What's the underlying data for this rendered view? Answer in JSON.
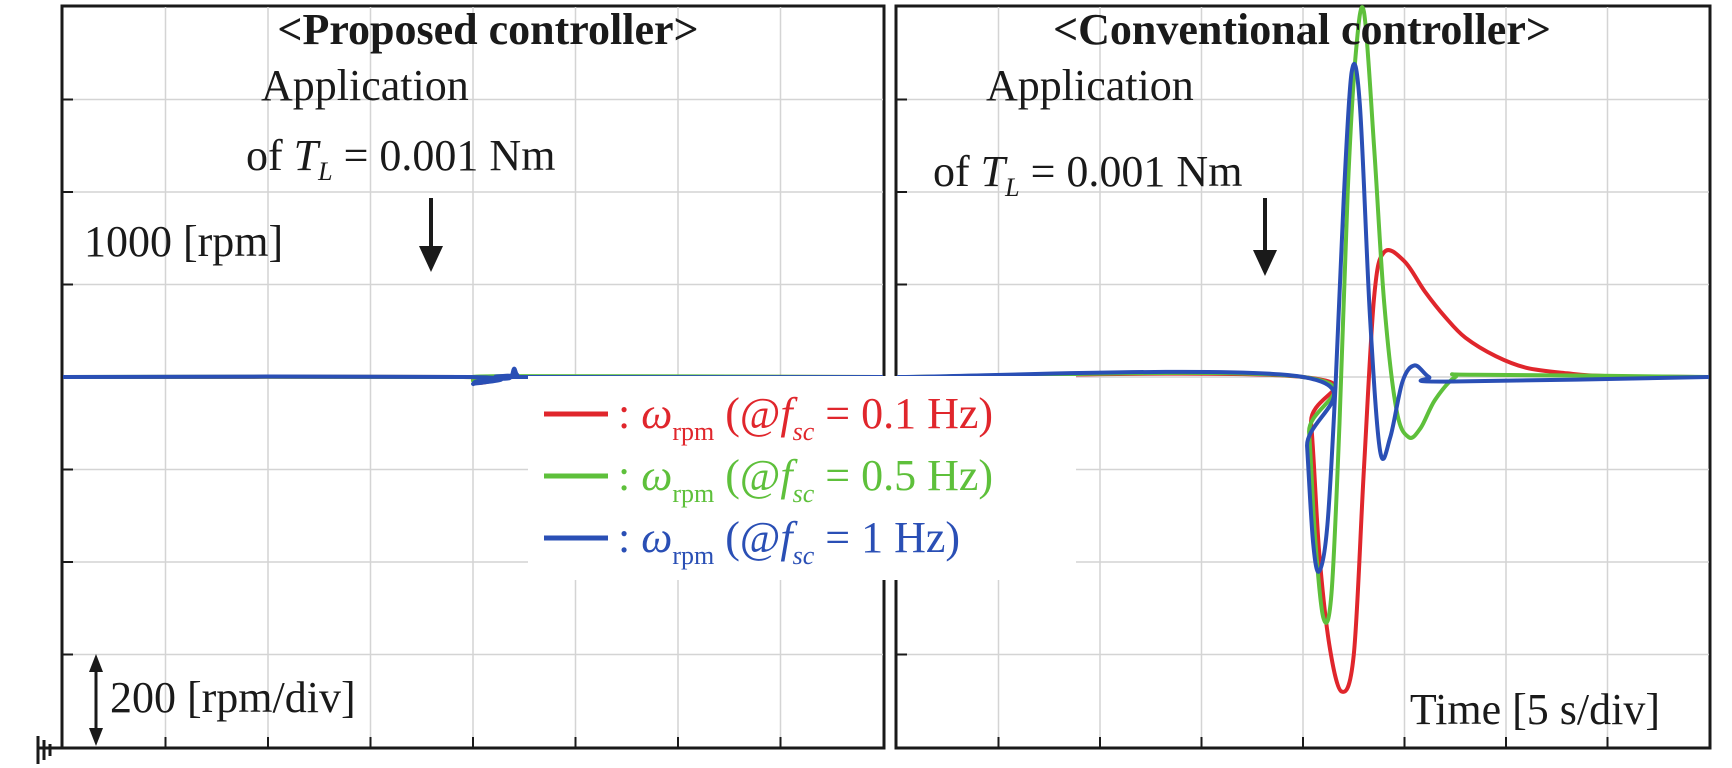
{
  "chart_data": [
    {
      "type": "line",
      "title": "<Proposed controller>",
      "annotation": {
        "line1": "Application",
        "line2_prefix": "of ",
        "symbol": "T",
        "symbol_sub": "L",
        "line2_suffix": " = 0.001 Nm"
      },
      "reference_label": "1000 [rpm]",
      "scale_label": "200 [rpm/div]",
      "x_unit": "s",
      "y_unit": "rpm",
      "xlim": [
        0,
        40
      ],
      "ylim": [
        200,
        1800
      ],
      "load_time": 20,
      "grid": true,
      "series": [
        {
          "color": "#e0262c",
          "x": [
            0,
            19.5,
            20,
            20.3,
            21.0,
            22.0,
            40
          ],
          "values": [
            1000,
            1000,
            993,
            987,
            992,
            1000,
            1000
          ]
        },
        {
          "color": "#5ec03b",
          "x": [
            0,
            19.5,
            20,
            20.2,
            20.8,
            21.6,
            40
          ],
          "values": [
            1000,
            1000,
            992,
            988,
            995,
            1002,
            1000
          ]
        },
        {
          "color": "#2a4fb5",
          "x": [
            0,
            19.9,
            20.0,
            20.15,
            21.0,
            21.8,
            22.0,
            22.15,
            22.5,
            40
          ],
          "values": [
            1000,
            1000,
            985,
            990,
            996,
            998,
            1018,
            1005,
            1000,
            1000
          ]
        }
      ]
    },
    {
      "type": "line",
      "title": "<Conventional controller>",
      "annotation": {
        "line1": "Application",
        "line2_prefix": "of ",
        "symbol": "T",
        "symbol_sub": "L",
        "line2_suffix": " = 0.001 Nm"
      },
      "x_label": "Time [5 s/div]",
      "x_unit": "s",
      "y_unit": "rpm",
      "xlim": [
        0,
        40
      ],
      "ylim": [
        200,
        1800
      ],
      "load_time": 20,
      "grid": true,
      "series": [
        {
          "color": "#e0262c",
          "x": [
            0,
            20,
            20.4,
            20.8,
            21.3,
            21.9,
            22.5,
            23.0,
            23.5,
            24.0,
            25.0,
            26.0,
            27.0,
            28.0,
            29.5,
            31.0,
            33.0,
            35.0,
            40
          ],
          "values": [
            1000,
            1000,
            900,
            620,
            420,
            320,
            400,
            800,
            1170,
            1270,
            1250,
            1185,
            1130,
            1085,
            1045,
            1020,
            1008,
            1002,
            1000
          ]
        },
        {
          "color": "#5ec03b",
          "x": [
            0,
            20,
            20.3,
            20.6,
            21.0,
            21.4,
            21.8,
            22.2,
            22.6,
            23.0,
            23.5,
            24.0,
            24.6,
            25.2,
            25.8,
            26.5,
            27.5,
            28.5,
            40
          ],
          "values": [
            1000,
            1000,
            880,
            650,
            480,
            530,
            900,
            1400,
            1700,
            1790,
            1500,
            1160,
            930,
            870,
            890,
            950,
            1000,
            1005,
            1000
          ]
        },
        {
          "color": "#2a4fb5",
          "x": [
            0,
            20,
            20.2,
            20.5,
            20.8,
            21.2,
            21.6,
            22.0,
            22.4,
            22.8,
            23.3,
            23.8,
            24.3,
            24.9,
            25.5,
            26.2,
            27.0,
            40
          ],
          "values": [
            1000,
            1000,
            850,
            640,
            580,
            680,
            980,
            1380,
            1660,
            1590,
            1130,
            840,
            870,
            990,
            1025,
            1000,
            990,
            1000
          ]
        }
      ]
    }
  ],
  "legend": [
    {
      "color": "#e0262c",
      "prefix": ": ",
      "symbol": "ω",
      "symbol_sub": "rpm",
      "open": " (@",
      "freq_symbol": "f",
      "freq_sub": "sc",
      "value": " = 0.1 Hz)"
    },
    {
      "color": "#5ec03b",
      "prefix": ": ",
      "symbol": "ω",
      "symbol_sub": "rpm",
      "open": " (@",
      "freq_symbol": "f",
      "freq_sub": "sc",
      "value": " = 0.5 Hz)"
    },
    {
      "color": "#2a4fb5",
      "prefix": ": ",
      "symbol": "ω",
      "symbol_sub": "rpm",
      "open": " (@",
      "freq_symbol": "f",
      "freq_sub": "sc",
      "value": " = 1 Hz)"
    }
  ]
}
